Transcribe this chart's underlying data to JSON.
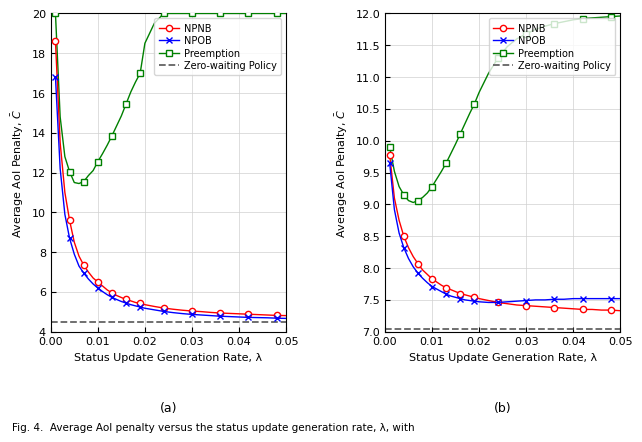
{
  "subplot_a": {
    "ylim": [
      4,
      20
    ],
    "yticks": [
      4,
      6,
      8,
      10,
      12,
      14,
      16,
      18,
      20
    ],
    "xlim": [
      0,
      0.05
    ],
    "xticks": [
      0,
      0.01,
      0.02,
      0.03,
      0.04,
      0.05
    ],
    "xlabel": "Status Update Generation Rate, λ",
    "ylabel": "Average AoI Penalty, $\\bar{C}$",
    "zero_wait_value": 4.5,
    "label": "(a)",
    "npnb_x": [
      0.001,
      0.002,
      0.003,
      0.004,
      0.005,
      0.006,
      0.007,
      0.008,
      0.009,
      0.01,
      0.011,
      0.012,
      0.013,
      0.014,
      0.015,
      0.016,
      0.017,
      0.018,
      0.019,
      0.02,
      0.022,
      0.024,
      0.026,
      0.028,
      0.03,
      0.032,
      0.034,
      0.036,
      0.038,
      0.04,
      0.042,
      0.044,
      0.046,
      0.048,
      0.05
    ],
    "npnb_y": [
      18.6,
      13.5,
      11.0,
      9.6,
      8.5,
      7.8,
      7.35,
      7.0,
      6.7,
      6.5,
      6.3,
      6.1,
      5.95,
      5.82,
      5.72,
      5.62,
      5.55,
      5.47,
      5.42,
      5.36,
      5.27,
      5.19,
      5.13,
      5.08,
      5.04,
      5.01,
      4.97,
      4.94,
      4.92,
      4.9,
      4.88,
      4.86,
      4.84,
      4.82,
      4.81
    ],
    "npob_x": [
      0.001,
      0.002,
      0.003,
      0.004,
      0.005,
      0.006,
      0.007,
      0.008,
      0.009,
      0.01,
      0.011,
      0.012,
      0.013,
      0.014,
      0.015,
      0.016,
      0.017,
      0.018,
      0.019,
      0.02,
      0.022,
      0.024,
      0.026,
      0.028,
      0.03,
      0.032,
      0.034,
      0.036,
      0.038,
      0.04,
      0.042,
      0.044,
      0.046,
      0.048,
      0.05
    ],
    "npob_y": [
      16.8,
      12.2,
      9.9,
      8.7,
      7.9,
      7.3,
      6.95,
      6.65,
      6.4,
      6.2,
      6.02,
      5.86,
      5.73,
      5.62,
      5.52,
      5.44,
      5.36,
      5.3,
      5.24,
      5.18,
      5.1,
      5.02,
      4.96,
      4.91,
      4.87,
      4.84,
      4.81,
      4.78,
      4.76,
      4.74,
      4.72,
      4.71,
      4.7,
      4.68,
      4.67
    ],
    "preempt_x": [
      0.001,
      0.002,
      0.003,
      0.004,
      0.005,
      0.006,
      0.007,
      0.008,
      0.009,
      0.01,
      0.011,
      0.012,
      0.013,
      0.014,
      0.015,
      0.016,
      0.017,
      0.018,
      0.019,
      0.02,
      0.022,
      0.024,
      0.026,
      0.028,
      0.03,
      0.032,
      0.034,
      0.036,
      0.038,
      0.04,
      0.042,
      0.044,
      0.046,
      0.048,
      0.05
    ],
    "preempt_y": [
      20.0,
      14.8,
      12.8,
      12.05,
      11.5,
      11.45,
      11.55,
      11.85,
      12.1,
      12.55,
      12.95,
      13.38,
      13.85,
      14.35,
      14.85,
      15.45,
      16.05,
      16.55,
      17.0,
      18.5,
      19.5,
      20.0,
      20.0,
      20.0,
      20.0,
      20.0,
      20.0,
      20.0,
      20.0,
      20.0,
      20.0,
      20.0,
      20.0,
      20.0,
      20.0
    ]
  },
  "subplot_b": {
    "ylim": [
      7.0,
      12.0
    ],
    "yticks": [
      7.0,
      7.5,
      8.0,
      8.5,
      9.0,
      9.5,
      10.0,
      10.5,
      11.0,
      11.5,
      12.0
    ],
    "xlim": [
      0,
      0.05
    ],
    "xticks": [
      0,
      0.01,
      0.02,
      0.03,
      0.04,
      0.05
    ],
    "xlabel": "Status Update Generation Rate, λ",
    "ylabel": "Average AoI Penalty, $\\bar{C}$",
    "zero_wait_value": 7.05,
    "label": "(b)",
    "npnb_x": [
      0.001,
      0.002,
      0.003,
      0.004,
      0.005,
      0.006,
      0.007,
      0.008,
      0.009,
      0.01,
      0.011,
      0.012,
      0.013,
      0.014,
      0.015,
      0.016,
      0.017,
      0.018,
      0.019,
      0.02,
      0.022,
      0.024,
      0.026,
      0.028,
      0.03,
      0.032,
      0.034,
      0.036,
      0.038,
      0.04,
      0.042,
      0.044,
      0.046,
      0.048,
      0.05
    ],
    "npnb_y": [
      9.78,
      9.1,
      8.75,
      8.5,
      8.32,
      8.18,
      8.07,
      7.97,
      7.9,
      7.83,
      7.78,
      7.73,
      7.69,
      7.66,
      7.63,
      7.6,
      7.58,
      7.56,
      7.54,
      7.52,
      7.49,
      7.46,
      7.44,
      7.42,
      7.41,
      7.4,
      7.39,
      7.38,
      7.37,
      7.36,
      7.35,
      7.35,
      7.34,
      7.34,
      7.33
    ],
    "npob_x": [
      0.001,
      0.002,
      0.003,
      0.004,
      0.005,
      0.006,
      0.007,
      0.008,
      0.009,
      0.01,
      0.011,
      0.012,
      0.013,
      0.014,
      0.015,
      0.016,
      0.017,
      0.018,
      0.019,
      0.02,
      0.022,
      0.024,
      0.026,
      0.028,
      0.03,
      0.032,
      0.034,
      0.036,
      0.038,
      0.04,
      0.042,
      0.044,
      0.046,
      0.048,
      0.05
    ],
    "npob_y": [
      9.65,
      8.92,
      8.55,
      8.32,
      8.15,
      8.02,
      7.92,
      7.84,
      7.77,
      7.71,
      7.67,
      7.63,
      7.59,
      7.56,
      7.54,
      7.52,
      7.5,
      7.49,
      7.48,
      7.47,
      7.46,
      7.46,
      7.47,
      7.48,
      7.49,
      7.5,
      7.5,
      7.51,
      7.51,
      7.52,
      7.52,
      7.52,
      7.52,
      7.52,
      7.52
    ],
    "preempt_x": [
      0.001,
      0.002,
      0.003,
      0.004,
      0.005,
      0.006,
      0.007,
      0.008,
      0.009,
      0.01,
      0.011,
      0.012,
      0.013,
      0.014,
      0.015,
      0.016,
      0.017,
      0.018,
      0.019,
      0.02,
      0.022,
      0.024,
      0.026,
      0.028,
      0.03,
      0.032,
      0.034,
      0.036,
      0.038,
      0.04,
      0.042,
      0.044,
      0.046,
      0.048,
      0.05
    ],
    "preempt_y": [
      9.9,
      9.52,
      9.28,
      9.15,
      9.06,
      9.03,
      9.06,
      9.11,
      9.18,
      9.28,
      9.4,
      9.52,
      9.65,
      9.8,
      9.95,
      10.11,
      10.27,
      10.43,
      10.58,
      10.76,
      11.06,
      11.3,
      11.48,
      11.6,
      11.68,
      11.75,
      11.8,
      11.84,
      11.87,
      11.9,
      11.92,
      11.93,
      11.94,
      11.95,
      11.96
    ]
  },
  "colors": {
    "npnb": "#FF0000",
    "npob": "#0000FF",
    "preempt": "#008000",
    "zero_wait": "#636363"
  },
  "fig_caption": "Fig. 4.  Average AoI penalty versus the status update generation rate, λ, with"
}
